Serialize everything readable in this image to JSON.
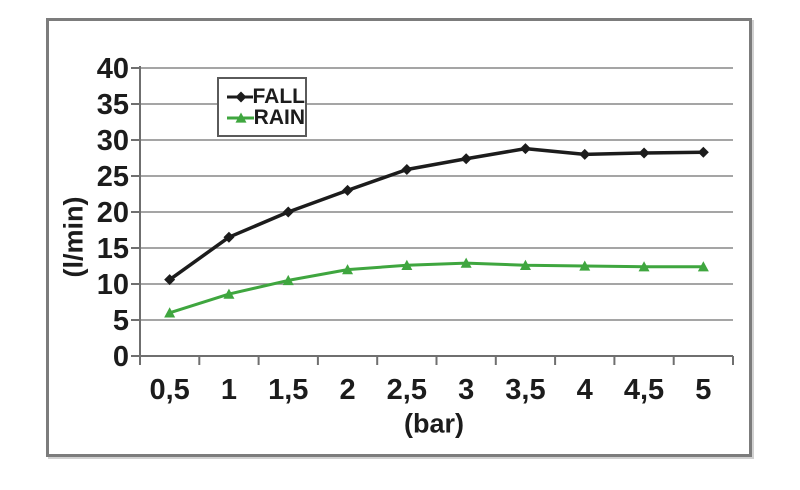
{
  "chart_data": {
    "type": "line",
    "title": "",
    "xlabel": "(bar)",
    "ylabel": "(l/min)",
    "categories": [
      "0,5",
      "1",
      "1,5",
      "2",
      "2,5",
      "3",
      "3,5",
      "4",
      "4,5",
      "5"
    ],
    "x_values": [
      0.5,
      1,
      1.5,
      2,
      2.5,
      3,
      3.5,
      4,
      4.5,
      5
    ],
    "series": [
      {
        "name": "FALL",
        "color": "#1c1c1c",
        "marker": "diamond",
        "values": [
          10.6,
          16.5,
          20,
          23,
          25.9,
          27.4,
          28.8,
          28.0,
          28.2,
          28.3
        ]
      },
      {
        "name": "RAIN",
        "color": "#3fa63f",
        "marker": "triangle",
        "values": [
          6,
          8.6,
          10.5,
          12,
          12.6,
          12.9,
          12.6,
          12.5,
          12.4,
          12.4
        ]
      }
    ],
    "ylim": [
      0,
      40
    ],
    "yticks": [
      0,
      5,
      10,
      15,
      20,
      25,
      30,
      35,
      40
    ],
    "grid": "horizontal",
    "legend_position": "top-center-left-inside"
  },
  "colors": {
    "background": "#ffffff",
    "frame": "#7c7c7c",
    "gridline": "#878787",
    "axis": "#6f6f6f",
    "text": "#1c1c1c",
    "legend_border": "#5a5a5a"
  }
}
